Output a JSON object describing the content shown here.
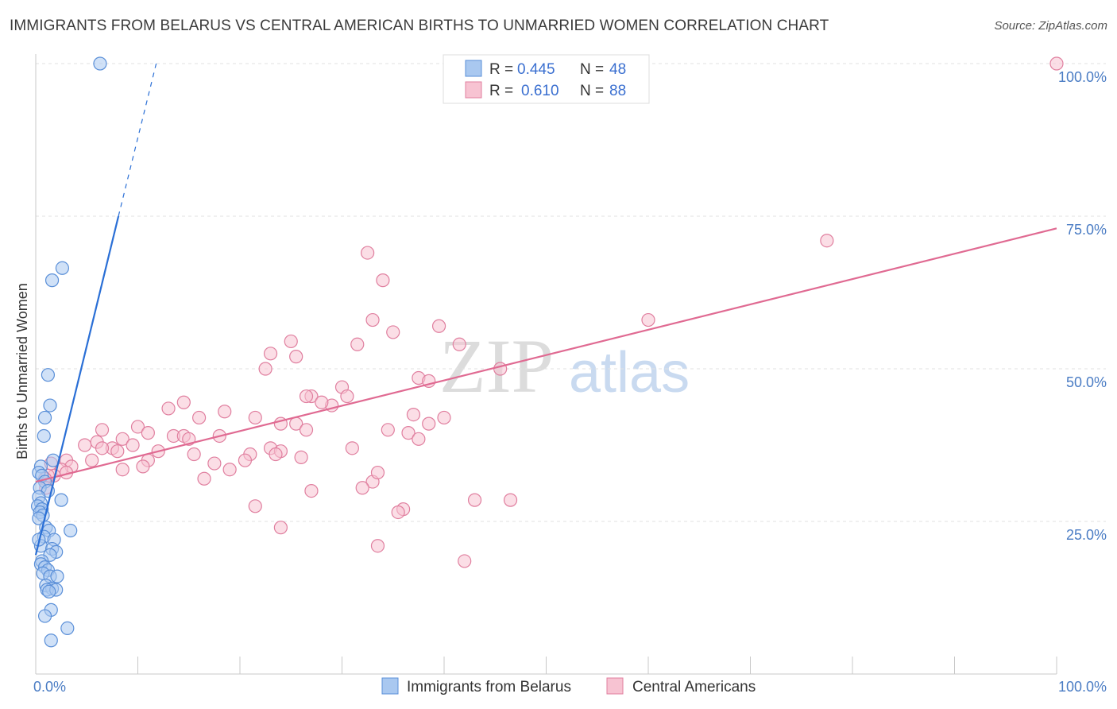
{
  "title": "IMMIGRANTS FROM BELARUS VS CENTRAL AMERICAN BIRTHS TO UNMARRIED WOMEN CORRELATION CHART",
  "source": "Source: ZipAtlas.com",
  "watermark": {
    "zip": "ZIP",
    "atlas": "atlas"
  },
  "colors": {
    "blue_fill": "#a9c8f0",
    "blue_stroke": "#5a8fd8",
    "blue_line": "#2a6fd6",
    "pink_fill": "#f7c3d2",
    "pink_stroke": "#e07f9f",
    "pink_line": "#e06a92",
    "grid": "#e2e2e2",
    "axis_label": "#4a7cc4"
  },
  "legend": {
    "rows": [
      {
        "r_label": "R =",
        "r_value": "0.445",
        "n_label": "N =",
        "n_value": "48"
      },
      {
        "r_label": "R =",
        "r_value": "0.610",
        "n_label": "N =",
        "n_value": "88"
      }
    ]
  },
  "bottom_legend": [
    "Immigrants from Belarus",
    "Central Americans"
  ],
  "chart_data": {
    "type": "scatter",
    "title": "IMMIGRANTS FROM BELARUS VS CENTRAL AMERICAN BIRTHS TO UNMARRIED WOMEN CORRELATION CHART",
    "xlabel": "",
    "ylabel": "Births to Unmarried Women",
    "xlim": [
      0,
      100
    ],
    "ylim": [
      0,
      100
    ],
    "x_tick_labels": [
      "0.0%",
      "100.0%"
    ],
    "y_tick_labels": [
      "25.0%",
      "50.0%",
      "75.0%",
      "100.0%"
    ],
    "y_ticks": [
      25,
      50,
      75,
      100
    ],
    "grid": true,
    "series": [
      {
        "name": "Immigrants from Belarus",
        "r": 0.445,
        "n": 48,
        "trend": {
          "x0": 0,
          "y0": 19.5,
          "x1": 8.1,
          "y1": 75,
          "dash_x1": 11.8,
          "dash_y1": 100
        },
        "points": [
          [
            6.3,
            100
          ],
          [
            2.6,
            66.5
          ],
          [
            1.6,
            64.5
          ],
          [
            1.2,
            49
          ],
          [
            1.4,
            44
          ],
          [
            0.9,
            42
          ],
          [
            0.8,
            39
          ],
          [
            1.7,
            35
          ],
          [
            0.5,
            34
          ],
          [
            0.3,
            33
          ],
          [
            0.6,
            32.5
          ],
          [
            0.9,
            31.5
          ],
          [
            0.4,
            30.5
          ],
          [
            1.2,
            30
          ],
          [
            0.3,
            29
          ],
          [
            2.5,
            28.5
          ],
          [
            0.5,
            28
          ],
          [
            0.2,
            27.5
          ],
          [
            0.6,
            27
          ],
          [
            0.4,
            26.5
          ],
          [
            0.7,
            26
          ],
          [
            0.3,
            25.5
          ],
          [
            1.0,
            24
          ],
          [
            1.3,
            23.5
          ],
          [
            3.4,
            23.5
          ],
          [
            0.8,
            22.5
          ],
          [
            1.8,
            22
          ],
          [
            0.5,
            21
          ],
          [
            1.6,
            20.5
          ],
          [
            2.0,
            20
          ],
          [
            1.4,
            19.5
          ],
          [
            0.6,
            18.5
          ],
          [
            0.5,
            18
          ],
          [
            0.9,
            17.5
          ],
          [
            1.2,
            17
          ],
          [
            0.7,
            16.5
          ],
          [
            1.4,
            16
          ],
          [
            2.1,
            16
          ],
          [
            1.0,
            14.5
          ],
          [
            1.6,
            14
          ],
          [
            1.1,
            13.8
          ],
          [
            2.0,
            13.8
          ],
          [
            1.3,
            13.5
          ],
          [
            1.5,
            10.5
          ],
          [
            0.9,
            9.5
          ],
          [
            3.1,
            7.5
          ],
          [
            1.5,
            5.5
          ],
          [
            0.3,
            22
          ]
        ]
      },
      {
        "name": "Central Americans",
        "r": 0.61,
        "n": 88,
        "trend": {
          "x0": 0,
          "y0": 31.5,
          "x1": 100,
          "y1": 73
        },
        "points": [
          [
            100,
            100
          ],
          [
            77.5,
            71
          ],
          [
            32.5,
            69
          ],
          [
            34.0,
            64.5
          ],
          [
            60.0,
            58
          ],
          [
            33.0,
            58
          ],
          [
            39.5,
            57
          ],
          [
            35.0,
            56
          ],
          [
            25.0,
            54.5
          ],
          [
            31.5,
            54
          ],
          [
            41.5,
            54
          ],
          [
            23.0,
            52.5
          ],
          [
            25.5,
            52
          ],
          [
            22.5,
            50
          ],
          [
            45.5,
            50
          ],
          [
            37.5,
            48.5
          ],
          [
            38.5,
            48
          ],
          [
            30.0,
            47
          ],
          [
            27.0,
            45.5
          ],
          [
            26.5,
            45.5
          ],
          [
            30.5,
            45.5
          ],
          [
            29.0,
            44
          ],
          [
            14.5,
            44.5
          ],
          [
            28.0,
            44.5
          ],
          [
            13.0,
            43.5
          ],
          [
            18.5,
            43
          ],
          [
            37.0,
            42.5
          ],
          [
            40.0,
            42
          ],
          [
            16.0,
            42
          ],
          [
            21.5,
            42
          ],
          [
            25.5,
            41
          ],
          [
            24.0,
            41
          ],
          [
            38.5,
            41
          ],
          [
            34.5,
            40
          ],
          [
            36.5,
            39.5
          ],
          [
            10.0,
            40.5
          ],
          [
            26.5,
            40
          ],
          [
            6.5,
            40
          ],
          [
            11.0,
            39.5
          ],
          [
            13.5,
            39
          ],
          [
            14.5,
            39
          ],
          [
            18.0,
            39
          ],
          [
            15.0,
            38.5
          ],
          [
            37.5,
            38.5
          ],
          [
            8.5,
            38.5
          ],
          [
            6.0,
            38
          ],
          [
            4.8,
            37.5
          ],
          [
            9.5,
            37.5
          ],
          [
            23.0,
            37
          ],
          [
            31.0,
            37
          ],
          [
            7.5,
            37
          ],
          [
            6.5,
            37
          ],
          [
            24.0,
            36.5
          ],
          [
            12.0,
            36.5
          ],
          [
            8.0,
            36.5
          ],
          [
            21.0,
            36
          ],
          [
            15.5,
            36
          ],
          [
            23.5,
            36
          ],
          [
            26.0,
            35.5
          ],
          [
            20.5,
            35
          ],
          [
            11.0,
            35
          ],
          [
            3.0,
            35
          ],
          [
            5.5,
            35
          ],
          [
            1.5,
            34.5
          ],
          [
            3.5,
            34
          ],
          [
            17.5,
            34.5
          ],
          [
            10.5,
            34
          ],
          [
            8.5,
            33.5
          ],
          [
            19.0,
            33.5
          ],
          [
            2.5,
            33.5
          ],
          [
            3.0,
            33
          ],
          [
            1.8,
            32.5
          ],
          [
            1.2,
            32.5
          ],
          [
            0.9,
            32
          ],
          [
            1.0,
            30.5
          ],
          [
            16.5,
            32
          ],
          [
            33.0,
            31.5
          ],
          [
            32.0,
            30.5
          ],
          [
            27.0,
            30
          ],
          [
            43.0,
            28.5
          ],
          [
            46.5,
            28.5
          ],
          [
            21.5,
            27.5
          ],
          [
            36.0,
            27
          ],
          [
            24.0,
            24
          ],
          [
            35.5,
            26.5
          ],
          [
            42.0,
            18.5
          ],
          [
            33.5,
            21
          ],
          [
            33.5,
            33
          ]
        ]
      }
    ]
  }
}
